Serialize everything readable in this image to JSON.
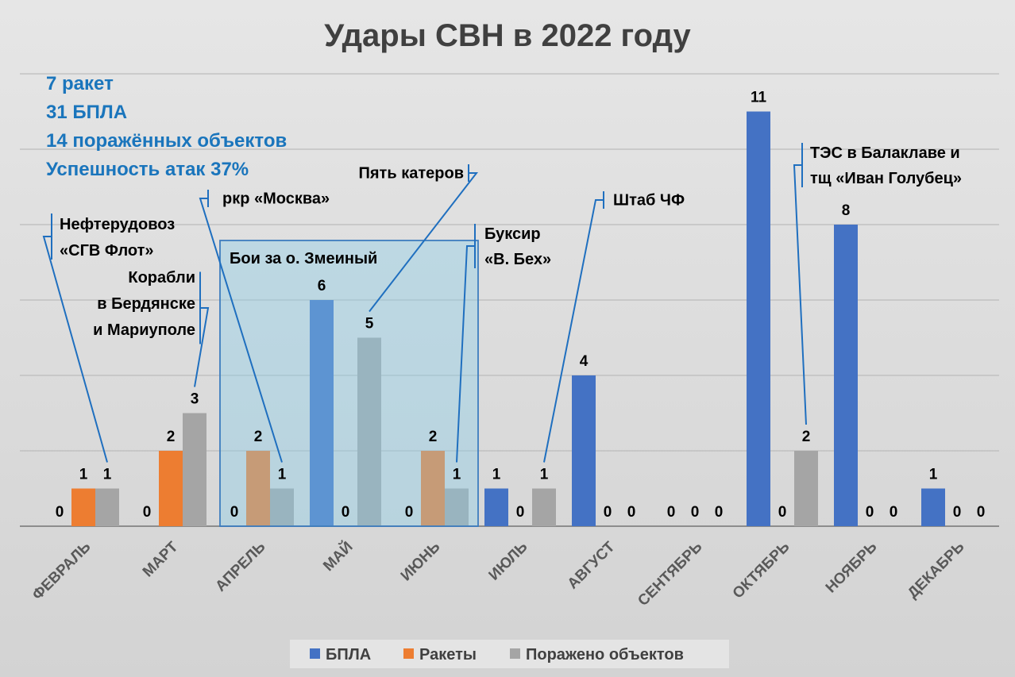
{
  "chart_data": {
    "type": "bar",
    "title": "Удары СВН в 2022 году",
    "categories": [
      "ФЕВРАЛЬ",
      "МАРТ",
      "АПРЕЛЬ",
      "МАЙ",
      "ИЮНЬ",
      "ИЮЛЬ",
      "АВГУСТ",
      "СЕНТЯБРЬ",
      "ОКТЯБРЬ",
      "НОЯБРЬ",
      "ДЕКАБРЬ"
    ],
    "series": [
      {
        "name": "БПЛА",
        "color": "#4472c4",
        "values": [
          0,
          0,
          0,
          6,
          0,
          1,
          4,
          0,
          11,
          8,
          1
        ]
      },
      {
        "name": "Ракеты",
        "color": "#ed7d31",
        "values": [
          1,
          2,
          2,
          0,
          2,
          0,
          0,
          0,
          0,
          0,
          0
        ]
      },
      {
        "name": "Поражено объектов",
        "color": "#a5a5a5",
        "values": [
          1,
          3,
          1,
          5,
          1,
          1,
          0,
          0,
          2,
          0,
          0
        ]
      }
    ],
    "ylim": [
      0,
      12
    ],
    "grid": true,
    "legend": "bottom",
    "summary": [
      "7 ракет",
      "31 БПЛА",
      "14 поражённых объектов",
      "Успешность атак 37%"
    ],
    "highlight": {
      "label": "Бои за о. Змеиный",
      "categories": [
        "АПРЕЛЬ",
        "МАЙ",
        "ИЮНЬ"
      ]
    },
    "annotations": [
      {
        "lines": [
          "Нефтерудовоз",
          "«СГВ Флот»"
        ],
        "category": "ФЕВРАЛЬ",
        "series": "Поражено объектов"
      },
      {
        "lines": [
          "Корабли",
          "в Бердянске",
          "и Мариуполе"
        ],
        "category": "МАРТ",
        "series": "Поражено объектов"
      },
      {
        "lines": [
          "ркр «Москва»"
        ],
        "category": "АПРЕЛЬ",
        "series": "Поражено объектов"
      },
      {
        "lines": [
          "Пять катеров"
        ],
        "category": "МАЙ",
        "series": "Поражено объектов"
      },
      {
        "lines": [
          "Буксир",
          "«В. Бех»"
        ],
        "category": "ИЮНЬ",
        "series": "Поражено объектов"
      },
      {
        "lines": [
          "Штаб ЧФ"
        ],
        "category": "ИЮЛЬ",
        "series": "Поражено объектов"
      },
      {
        "lines": [
          "ТЭС в Балаклаве и",
          "тщ «Иван Голубец»"
        ],
        "category": "ОКТЯБРЬ",
        "series": "Поражено объектов"
      }
    ]
  }
}
